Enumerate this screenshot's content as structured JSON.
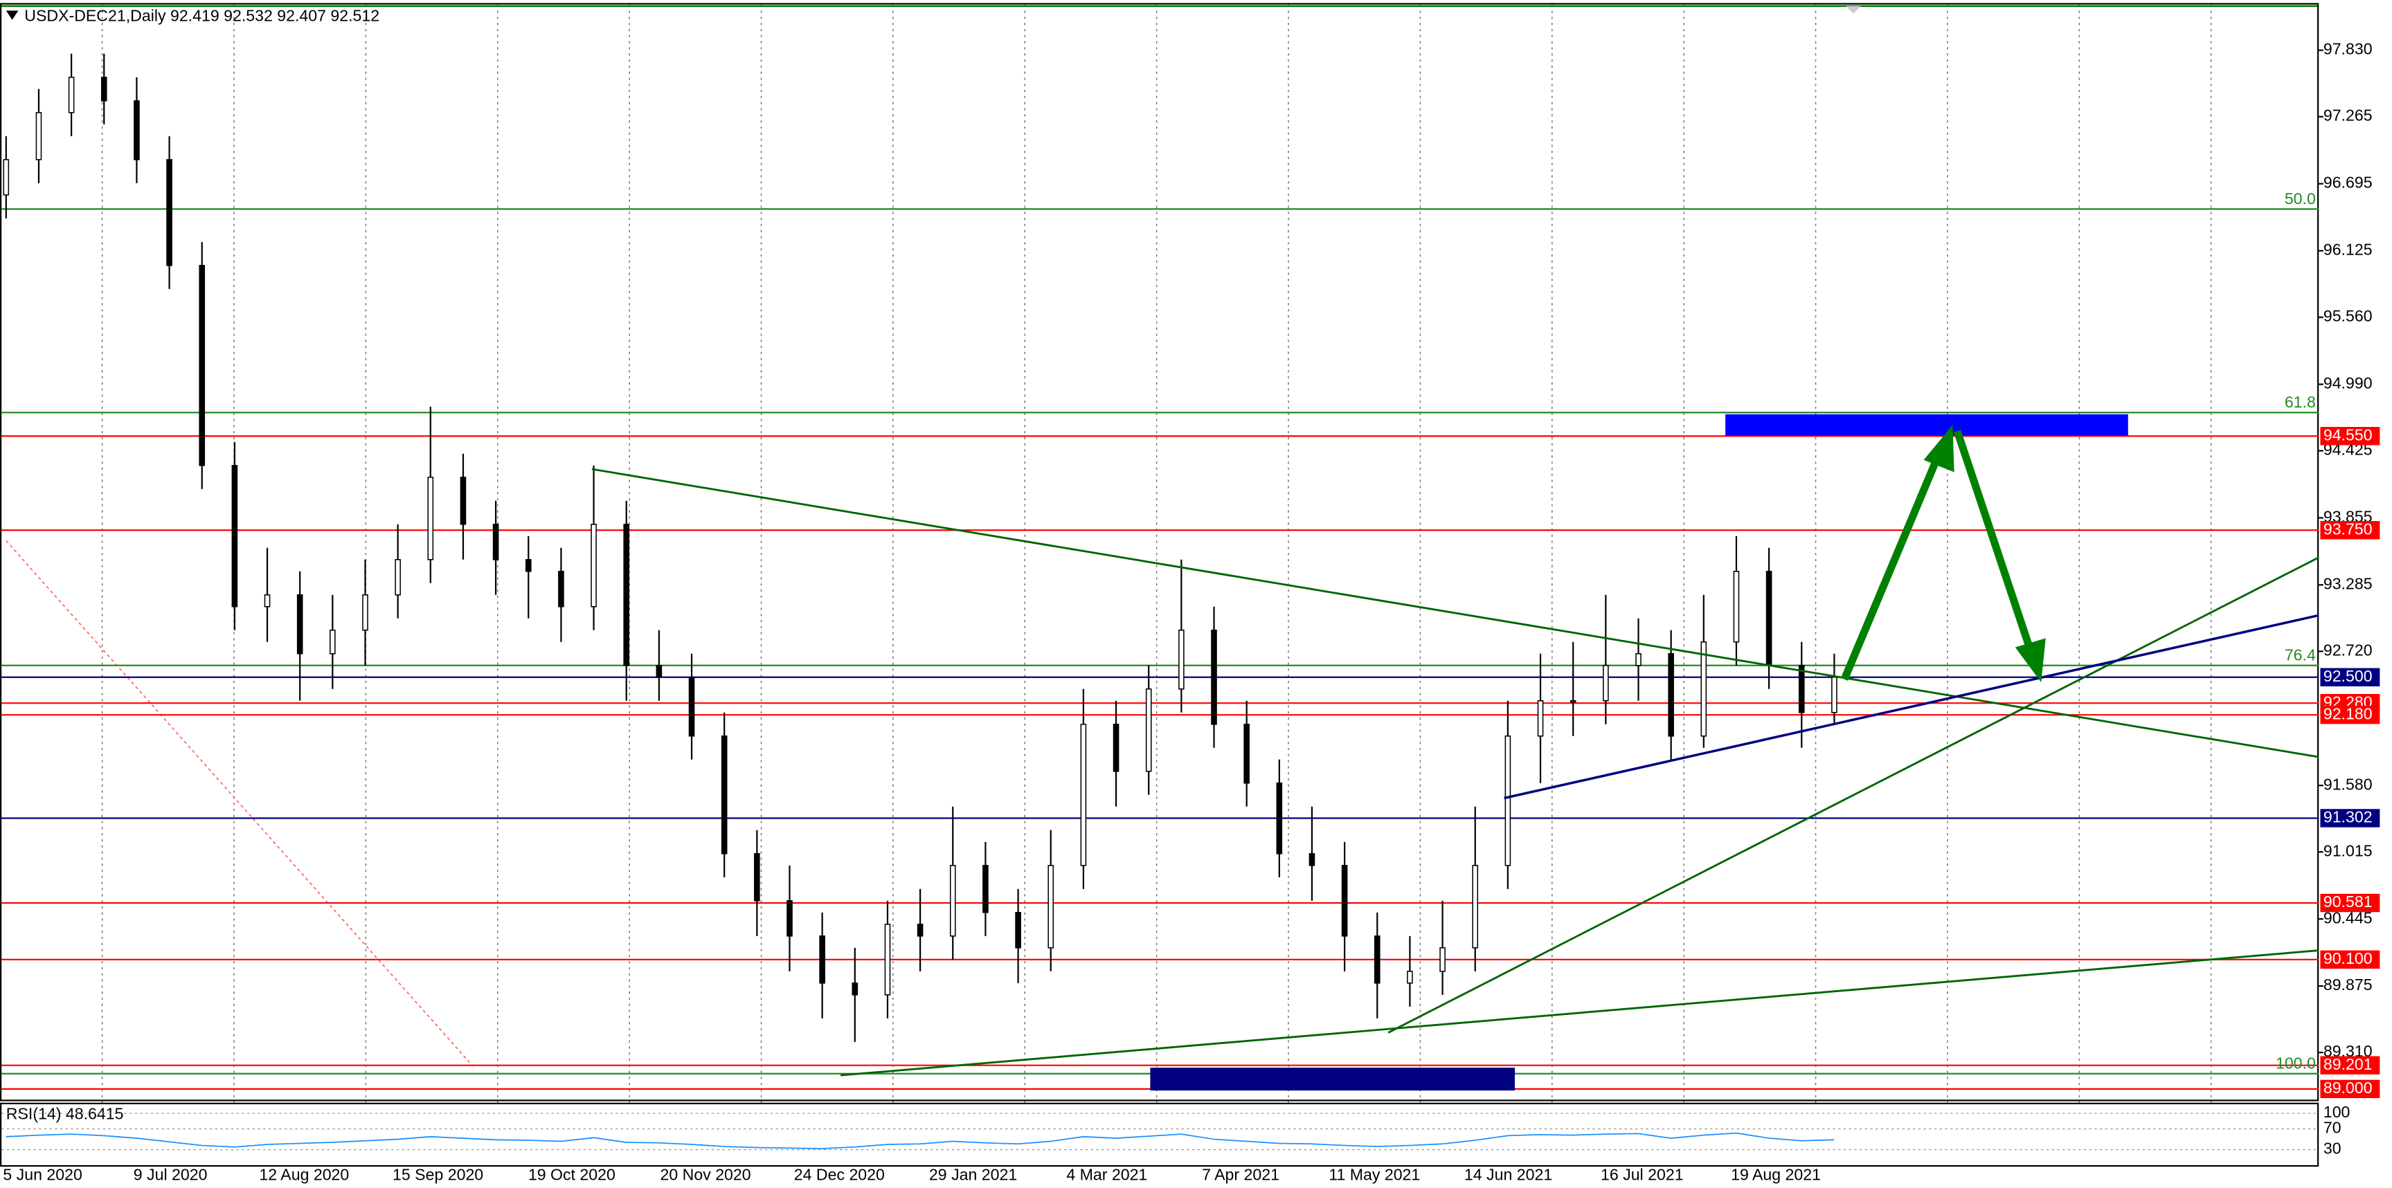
{
  "chart_data": {
    "type": "candlestick",
    "title": "USDX-DEC21,Daily 92.419 92.532 92.407 92.512",
    "categories": [
      "5 Jun 2020",
      "9 Jul 2020",
      "12 Aug 2020",
      "15 Sep 2020",
      "19 Oct 2020",
      "20 Nov 2020",
      "24 Dec 2020",
      "29 Jan 2021",
      "4 Mar 2021",
      "7 Apr 2021",
      "11 May 2021",
      "14 Jun 2021",
      "16 Jul 2021",
      "19 Aug 2021"
    ],
    "candles": [
      [
        96.6,
        97.1,
        96.4,
        96.9
      ],
      [
        96.9,
        97.5,
        96.7,
        97.3
      ],
      [
        97.3,
        97.8,
        97.1,
        97.6
      ],
      [
        97.6,
        97.8,
        97.2,
        97.4
      ],
      [
        97.4,
        97.6,
        96.7,
        96.9
      ],
      [
        96.9,
        97.1,
        95.8,
        96.0
      ],
      [
        96.0,
        96.2,
        94.1,
        94.3
      ],
      [
        94.3,
        94.5,
        92.9,
        93.1
      ],
      [
        93.1,
        93.6,
        92.8,
        93.2
      ],
      [
        93.2,
        93.4,
        92.3,
        92.7
      ],
      [
        92.7,
        93.2,
        92.4,
        92.9
      ],
      [
        92.9,
        93.5,
        92.6,
        93.2
      ],
      [
        93.2,
        93.8,
        93.0,
        93.5
      ],
      [
        93.5,
        94.8,
        93.3,
        94.2
      ],
      [
        94.2,
        94.4,
        93.5,
        93.8
      ],
      [
        93.8,
        94.0,
        93.2,
        93.5
      ],
      [
        93.5,
        93.7,
        93.0,
        93.4
      ],
      [
        93.4,
        93.6,
        92.8,
        93.1
      ],
      [
        93.1,
        94.3,
        92.9,
        93.8
      ],
      [
        93.8,
        94.0,
        92.3,
        92.6
      ],
      [
        92.6,
        92.9,
        92.3,
        92.5
      ],
      [
        92.5,
        92.7,
        91.8,
        92.0
      ],
      [
        92.0,
        92.2,
        90.8,
        91.0
      ],
      [
        91.0,
        91.2,
        90.3,
        90.6
      ],
      [
        90.6,
        90.9,
        90.0,
        90.3
      ],
      [
        90.3,
        90.5,
        89.6,
        89.9
      ],
      [
        89.9,
        90.2,
        89.4,
        89.8
      ],
      [
        89.8,
        90.6,
        89.6,
        90.4
      ],
      [
        90.4,
        90.7,
        90.0,
        90.3
      ],
      [
        90.3,
        91.4,
        90.1,
        90.9
      ],
      [
        90.9,
        91.1,
        90.3,
        90.5
      ],
      [
        90.5,
        90.7,
        89.9,
        90.2
      ],
      [
        90.2,
        91.2,
        90.0,
        90.9
      ],
      [
        90.9,
        92.4,
        90.7,
        92.1
      ],
      [
        92.1,
        92.3,
        91.4,
        91.7
      ],
      [
        91.7,
        92.6,
        91.5,
        92.4
      ],
      [
        92.4,
        93.5,
        92.2,
        92.9
      ],
      [
        92.9,
        93.1,
        91.9,
        92.1
      ],
      [
        92.1,
        92.3,
        91.4,
        91.6
      ],
      [
        91.6,
        91.8,
        90.8,
        91.0
      ],
      [
        91.0,
        91.4,
        90.6,
        90.9
      ],
      [
        90.9,
        91.1,
        90.0,
        90.3
      ],
      [
        90.3,
        90.5,
        89.6,
        89.9
      ],
      [
        89.9,
        90.3,
        89.7,
        90.0
      ],
      [
        90.0,
        90.6,
        89.8,
        90.2
      ],
      [
        90.2,
        91.4,
        90.0,
        90.9
      ],
      [
        90.9,
        92.3,
        90.7,
        92.0
      ],
      [
        92.0,
        92.7,
        91.6,
        92.3
      ],
      [
        92.3,
        92.8,
        92.0,
        92.3
      ],
      [
        92.3,
        93.2,
        92.1,
        92.6
      ],
      [
        92.6,
        93.0,
        92.3,
        92.7
      ],
      [
        92.7,
        92.9,
        91.8,
        92.0
      ],
      [
        92.0,
        93.2,
        91.9,
        92.8
      ],
      [
        92.8,
        93.7,
        92.6,
        93.4
      ],
      [
        93.4,
        93.6,
        92.4,
        92.6
      ],
      [
        92.6,
        92.8,
        91.9,
        92.2
      ],
      [
        92.2,
        92.7,
        92.1,
        92.5
      ]
    ],
    "ylim": [
      88.909,
      98.231
    ],
    "yticks": [
      {
        "value": 97.83,
        "label": "97.830"
      },
      97.265,
      96.695,
      96.125,
      {
        "value": 95.56,
        "label": "95.560"
      },
      {
        "value": 94.99,
        "label": "94.990"
      },
      94.425,
      93.855,
      93.285,
      {
        "value": 92.72,
        "label": "92.720"
      },
      {
        "value": 91.58,
        "label": "91.580"
      },
      91.015,
      90.445,
      89.875,
      {
        "value": 89.31,
        "label": "89.310"
      }
    ],
    "levels": [
      {
        "value": 94.55,
        "label": "94.550",
        "color": "#ff0000"
      },
      {
        "value": 93.75,
        "label": "93.750",
        "color": "#ff0000"
      },
      {
        "value": 92.5,
        "label": "92.500",
        "color": "#000080"
      },
      {
        "value": 92.28,
        "label": "92.280",
        "color": "#ff0000"
      },
      {
        "value": 92.18,
        "label": "92.180",
        "color": "#ff0000"
      },
      {
        "value": 91.302,
        "label": "91.302",
        "color": "#000080"
      },
      {
        "value": 90.581,
        "label": "90.581",
        "color": "#ff0000"
      },
      {
        "value": 90.1,
        "label": "90.100",
        "color": "#ff0000"
      },
      {
        "value": 89.201,
        "label": "89.201",
        "color": "#ff0000"
      },
      {
        "value": 89.0,
        "label": "89.000",
        "color": "#ff0000"
      }
    ],
    "fib_levels": [
      {
        "value": 96.48,
        "label": "50.0"
      },
      {
        "value": 94.75,
        "label": "61.8"
      },
      {
        "value": 92.6,
        "label": "76.4"
      },
      {
        "value": 89.13,
        "label": "100.0"
      }
    ],
    "fib_color": "#228b22",
    "rsi": {
      "label": "RSI(14) 48.6415",
      "color": "#1e90ff",
      "ylim": [
        0,
        100
      ],
      "yticks": [
        100,
        70,
        30
      ],
      "values": [
        55,
        58,
        60,
        57,
        52,
        45,
        38,
        35,
        40,
        42,
        44,
        47,
        50,
        55,
        52,
        49,
        48,
        46,
        53,
        44,
        43,
        40,
        36,
        34,
        33,
        32,
        35,
        40,
        41,
        46,
        43,
        41,
        46,
        55,
        52,
        56,
        60,
        50,
        46,
        42,
        41,
        38,
        36,
        38,
        41,
        48,
        57,
        59,
        58,
        60,
        61,
        52,
        58,
        62,
        52,
        47,
        49
      ]
    }
  }
}
